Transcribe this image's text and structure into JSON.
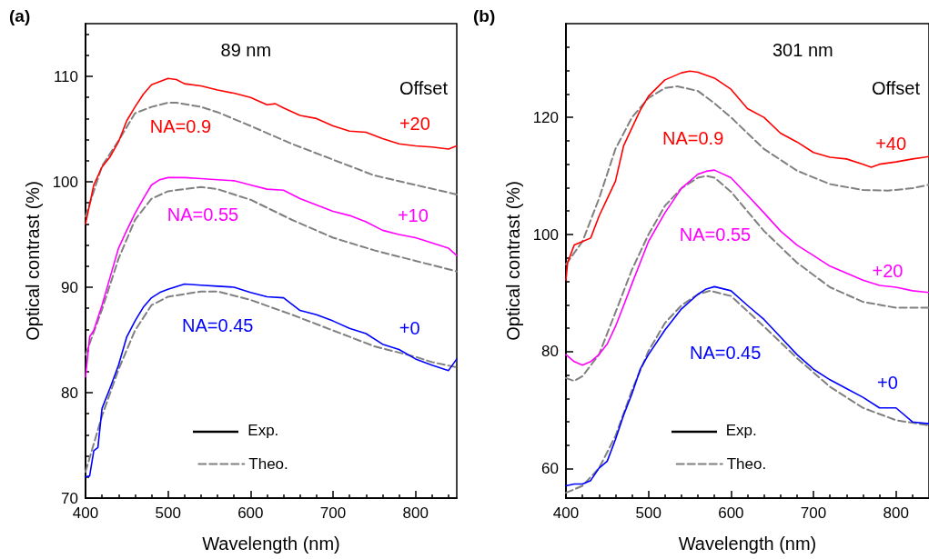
{
  "chart_data": [
    {
      "type": "line",
      "title": "89 nm",
      "xlabel": "Wavelength (nm)",
      "ylabel": "Optical contrast (%)",
      "xlim": [
        400,
        850
      ],
      "xticks": [
        400,
        {
          "value": 420,
          "label": null
        },
        {
          "value": 440,
          "label": null
        },
        {
          "value": 460,
          "label": null
        },
        {
          "value": 480,
          "label": null
        },
        500,
        {
          "value": 520,
          "label": null
        },
        {
          "value": 540,
          "label": null
        },
        {
          "value": 560,
          "label": null
        },
        {
          "value": 580,
          "label": null
        },
        600,
        {
          "value": 620,
          "label": null
        },
        {
          "value": 640,
          "label": null
        },
        {
          "value": 660,
          "label": null
        },
        {
          "value": 680,
          "label": null
        },
        700,
        {
          "value": 720,
          "label": null
        },
        {
          "value": 740,
          "label": null
        },
        {
          "value": 760,
          "label": null
        },
        {
          "value": 780,
          "label": null
        },
        800,
        {
          "value": 820,
          "label": null
        },
        {
          "value": 840,
          "label": null
        }
      ],
      "ylim": [
        70,
        115
      ],
      "yticks": [
        70,
        {
          "value": 72,
          "label": null
        },
        {
          "value": 74,
          "label": null
        },
        {
          "value": 76,
          "label": null
        },
        {
          "value": 78,
          "label": null
        },
        80,
        {
          "value": 82,
          "label": null
        },
        {
          "value": 84,
          "label": null
        },
        {
          "value": 86,
          "label": null
        },
        {
          "value": 88,
          "label": null
        },
        90,
        {
          "value": 92,
          "label": null
        },
        {
          "value": 94,
          "label": null
        },
        {
          "value": 96,
          "label": null
        },
        {
          "value": 98,
          "label": null
        },
        100,
        {
          "value": 102,
          "label": null
        },
        {
          "value": 104,
          "label": null
        },
        {
          "value": 106,
          "label": null
        },
        {
          "value": 108,
          "label": null
        },
        110,
        {
          "value": 112,
          "label": null
        },
        {
          "value": 114,
          "label": null
        }
      ],
      "marker": "none",
      "legend": "bottom left",
      "series": [
        {
          "name": "NA=0.9",
          "color": "#ff0000",
          "x": [
            400,
            410,
            420,
            430,
            440,
            450,
            460,
            470,
            480,
            490,
            500,
            510,
            520,
            540,
            560,
            580,
            600,
            620,
            630,
            640,
            660,
            680,
            700,
            720,
            740,
            760,
            780,
            800,
            820,
            840,
            850
          ],
          "values": [
            96.0,
            99.7,
            101.4,
            102.4,
            103.8,
            105.8,
            107.1,
            108.3,
            109.2,
            109.5,
            109.8,
            109.7,
            109.3,
            109.1,
            108.7,
            108.4,
            108.0,
            107.3,
            107.4,
            107.0,
            106.3,
            106.0,
            105.3,
            104.8,
            104.7,
            104.1,
            103.6,
            103.4,
            103.3,
            103.1,
            103.4
          ]
        },
        {
          "name": "Theo.",
          "color": "#808080",
          "line_style": "dashed",
          "x": [
            400,
            420,
            440,
            460,
            480,
            500,
            510,
            540,
            560,
            600,
            650,
            700,
            750,
            800,
            850
          ],
          "values": [
            96.7,
            101.5,
            103.9,
            106.5,
            107.1,
            107.5,
            107.5,
            107.1,
            106.6,
            105.3,
            103.6,
            102.1,
            100.6,
            99.7,
            98.8
          ]
        },
        {
          "name": "NA=0.55",
          "color": "#ff00ff",
          "x": [
            400,
            405,
            410,
            420,
            430,
            440,
            450,
            460,
            470,
            480,
            490,
            500,
            520,
            540,
            560,
            580,
            600,
            620,
            640,
            660,
            680,
            700,
            720,
            740,
            760,
            780,
            800,
            820,
            840,
            850
          ],
          "values": [
            81.5,
            85.3,
            85.9,
            88.3,
            91.0,
            93.7,
            95.4,
            97.0,
            98.4,
            99.7,
            100.2,
            100.4,
            100.4,
            100.3,
            100.2,
            100.1,
            99.7,
            99.3,
            99.2,
            98.4,
            97.8,
            97.2,
            96.8,
            96.2,
            95.4,
            95.0,
            94.7,
            94.2,
            93.7,
            93.0
          ]
        },
        {
          "color": "#808080",
          "line_style": "dashed",
          "x": [
            400,
            420,
            440,
            460,
            480,
            500,
            540,
            560,
            600,
            650,
            700,
            750,
            800,
            850
          ],
          "values": [
            83.6,
            87.9,
            92.7,
            96.4,
            98.4,
            99.1,
            99.5,
            99.3,
            98.3,
            96.4,
            94.7,
            93.5,
            92.5,
            91.5
          ]
        },
        {
          "name": "NA=0.45",
          "color": "#0000ff",
          "x": [
            400,
            405,
            410,
            415,
            420,
            430,
            440,
            450,
            460,
            470,
            480,
            490,
            500,
            520,
            540,
            560,
            580,
            600,
            620,
            640,
            660,
            680,
            700,
            720,
            740,
            760,
            780,
            800,
            820,
            840,
            850
          ],
          "values": [
            72.0,
            72.1,
            74.5,
            74.8,
            78.5,
            80.5,
            82.6,
            85.3,
            86.8,
            88.1,
            89.0,
            89.5,
            89.8,
            90.3,
            90.2,
            90.1,
            90.0,
            89.5,
            89.1,
            89.0,
            87.8,
            87.4,
            86.8,
            86.1,
            85.6,
            84.6,
            84.1,
            83.2,
            82.6,
            82.1,
            83.2
          ]
        },
        {
          "color": "#808080",
          "line_style": "dashed",
          "x": [
            400,
            420,
            440,
            460,
            480,
            500,
            540,
            560,
            600,
            650,
            700,
            750,
            800,
            820,
            850
          ],
          "values": [
            72.5,
            77.8,
            82.2,
            85.9,
            88.3,
            89.1,
            89.6,
            89.6,
            88.8,
            87.4,
            85.9,
            84.4,
            83.4,
            82.9,
            82.4
          ]
        }
      ],
      "annotations": [
        "(a)",
        "Offset",
        "Exp.",
        "+20",
        "+10",
        "+0"
      ]
    },
    {
      "type": "line",
      "title": "301 nm",
      "xlabel": "Wavelength (nm)",
      "ylabel": "Optical contrast (%)",
      "xlim": [
        400,
        840
      ],
      "xticks": [
        400,
        {
          "value": 420,
          "label": null
        },
        {
          "value": 440,
          "label": null
        },
        {
          "value": 460,
          "label": null
        },
        {
          "value": 480,
          "label": null
        },
        500,
        {
          "value": 520,
          "label": null
        },
        {
          "value": 540,
          "label": null
        },
        {
          "value": 560,
          "label": null
        },
        {
          "value": 580,
          "label": null
        },
        600,
        {
          "value": 620,
          "label": null
        },
        {
          "value": 640,
          "label": null
        },
        {
          "value": 660,
          "label": null
        },
        {
          "value": 680,
          "label": null
        },
        700,
        {
          "value": 720,
          "label": null
        },
        {
          "value": 740,
          "label": null
        },
        {
          "value": 760,
          "label": null
        },
        {
          "value": 780,
          "label": null
        },
        800,
        {
          "value": 820,
          "label": null
        }
      ],
      "ylim": [
        55,
        136
      ],
      "yticks": [
        60,
        {
          "value": 64,
          "label": null
        },
        {
          "value": 68,
          "label": null
        },
        {
          "value": 72,
          "label": null
        },
        {
          "value": 76,
          "label": null
        },
        80,
        {
          "value": 84,
          "label": null
        },
        {
          "value": 88,
          "label": null
        },
        {
          "value": 92,
          "label": null
        },
        {
          "value": 96,
          "label": null
        },
        100,
        {
          "value": 104,
          "label": null
        },
        {
          "value": 108,
          "label": null
        },
        {
          "value": 112,
          "label": null
        },
        {
          "value": 116,
          "label": null
        },
        120,
        {
          "value": 124,
          "label": null
        },
        {
          "value": 128,
          "label": null
        },
        {
          "value": 132,
          "label": null
        }
      ],
      "marker": "none",
      "legend": "bottom left",
      "series": [
        {
          "name": "NA=0.9",
          "color": "#ff0000",
          "x": [
            400,
            402,
            410,
            420,
            430,
            440,
            450,
            460,
            470,
            480,
            490,
            500,
            520,
            540,
            550,
            560,
            580,
            600,
            620,
            640,
            660,
            680,
            700,
            720,
            740,
            760,
            770,
            780,
            800,
            820,
            840
          ],
          "values": [
            92.2,
            95.2,
            98.2,
            98.8,
            99.4,
            103.1,
            106.1,
            109.1,
            115.2,
            118.2,
            121.2,
            123.6,
            126.4,
            127.6,
            127.9,
            127.7,
            126.7,
            124.8,
            121.5,
            120.0,
            117.3,
            115.8,
            114.0,
            113.2,
            112.9,
            112.0,
            111.5,
            112.0,
            112.4,
            112.9,
            113.3
          ]
        },
        {
          "name": "Theo.",
          "color": "#808080",
          "line_style": "dashed",
          "x": [
            400,
            420,
            440,
            460,
            480,
            500,
            520,
            535,
            560,
            580,
            600,
            640,
            680,
            720,
            760,
            790,
            820,
            840
          ],
          "values": [
            94.9,
            98.8,
            106.1,
            114.6,
            120.0,
            123.3,
            125.0,
            125.3,
            124.5,
            122.4,
            120.0,
            114.6,
            110.9,
            108.6,
            107.6,
            107.5,
            107.9,
            108.5
          ]
        },
        {
          "name": "NA=0.55",
          "color": "#ff00ff",
          "x": [
            400,
            410,
            420,
            430,
            440,
            450,
            460,
            470,
            480,
            490,
            500,
            520,
            540,
            560,
            570,
            580,
            600,
            620,
            640,
            660,
            680,
            700,
            720,
            740,
            760,
            780,
            800,
            820,
            840
          ],
          "values": [
            79.5,
            78.3,
            77.7,
            78.3,
            79.5,
            81.3,
            84.3,
            87.9,
            91.6,
            95.2,
            98.8,
            103.7,
            107.9,
            110.3,
            110.8,
            111.0,
            109.7,
            106.7,
            103.7,
            100.6,
            98.2,
            96.4,
            94.6,
            93.4,
            92.2,
            91.3,
            91.0,
            90.4,
            90.1
          ]
        },
        {
          "color": "#808080",
          "line_style": "dashed",
          "x": [
            400,
            410,
            420,
            440,
            460,
            480,
            500,
            520,
            540,
            560,
            570,
            580,
            600,
            640,
            680,
            720,
            760,
            800,
            840
          ],
          "values": [
            75.5,
            75.0,
            75.8,
            79.5,
            86.7,
            94.0,
            100.0,
            104.9,
            107.9,
            109.7,
            110.0,
            109.7,
            107.3,
            100.6,
            95.2,
            91.0,
            88.5,
            87.5,
            87.5
          ]
        },
        {
          "name": "NA=0.45",
          "color": "#0000ff",
          "x": [
            400,
            410,
            420,
            430,
            440,
            450,
            460,
            470,
            480,
            490,
            500,
            520,
            540,
            560,
            570,
            580,
            600,
            620,
            640,
            660,
            680,
            700,
            720,
            740,
            760,
            780,
            800,
            820,
            840
          ],
          "values": [
            57.1,
            57.4,
            57.4,
            58.0,
            60.1,
            61.3,
            65.0,
            69.2,
            72.8,
            77.0,
            79.5,
            83.7,
            87.3,
            89.8,
            90.7,
            91.1,
            90.4,
            87.9,
            85.5,
            82.5,
            79.5,
            77.0,
            75.2,
            73.7,
            72.2,
            70.4,
            70.4,
            68.0,
            67.7
          ]
        },
        {
          "color": "#808080",
          "line_style": "dashed",
          "x": [
            400,
            420,
            440,
            460,
            480,
            500,
            520,
            540,
            560,
            575,
            600,
            640,
            680,
            720,
            760,
            800,
            840
          ],
          "values": [
            55.9,
            57.1,
            60.1,
            65.6,
            73.4,
            80.1,
            84.9,
            87.9,
            89.8,
            90.4,
            89.5,
            84.3,
            78.9,
            74.0,
            70.4,
            68.3,
            67.4
          ]
        }
      ],
      "annotations": [
        "(b)",
        "Offset",
        "Exp.",
        "+40",
        "+20",
        "+0"
      ]
    }
  ]
}
